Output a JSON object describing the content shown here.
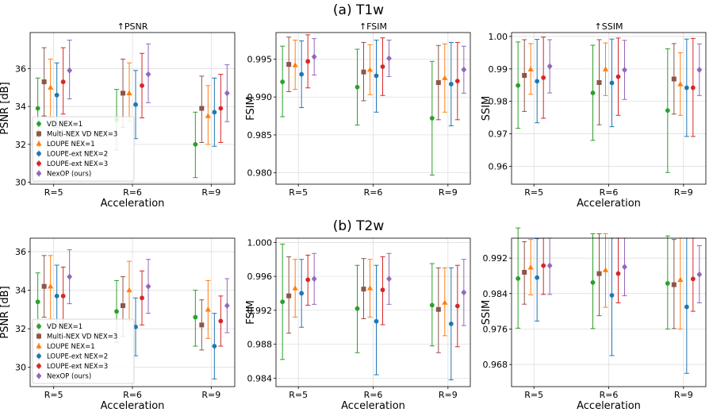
{
  "figure": {
    "row_titles": [
      "(a) T1w",
      "(b) T2w"
    ]
  },
  "legend_entries": [
    "VD NEX=1",
    "Multi-NEX VD NEX=3",
    "LOUPE NEX=1",
    "LOUPE-ext NEX=2",
    "LOUPE-ext NEX=3",
    "NexOP (ours)"
  ],
  "colors": {
    "VD NEX=1": "#2ca02c",
    "Multi-NEX VD NEX=3": "#8c564b",
    "LOUPE NEX=1": "#ff7f0e",
    "LOUPE-ext NEX=2": "#1f77b4",
    "LOUPE-ext NEX=3": "#d62728",
    "NexOP (ours)": "#9467bd"
  },
  "markers": {
    "VD NEX=1": "circle",
    "Multi-NEX VD NEX=3": "square",
    "LOUPE NEX=1": "triangle",
    "LOUPE-ext NEX=2": "circle",
    "LOUPE-ext NEX=3": "circle",
    "NexOP (ours)": "diamond"
  },
  "chart_data": [
    {
      "type": "scatter",
      "panel": "T1w-PSNR",
      "title": "↑PSNR",
      "xlabel": "Acceleration",
      "ylabel": "PSNR [dB]",
      "categories": [
        "R=5",
        "R=6",
        "R=9"
      ],
      "ylim": [
        29.9,
        37.9
      ],
      "yticks": [
        30,
        32,
        34,
        36
      ],
      "tick_format": "0",
      "grid": true,
      "legend": "lower-left",
      "series": [
        {
          "name": "VD NEX=1",
          "values": [
            33.9,
            33.3,
            32.0
          ],
          "err_low": [
            32.4,
            31.7,
            30.25
          ],
          "err_high": [
            35.5,
            34.9,
            33.7
          ]
        },
        {
          "name": "Multi-NEX VD NEX=3",
          "values": [
            35.3,
            34.7,
            33.9
          ],
          "err_low": [
            33.5,
            32.9,
            32.1
          ],
          "err_high": [
            37.1,
            36.5,
            35.6
          ]
        },
        {
          "name": "LOUPE NEX=1",
          "values": [
            35.0,
            34.7,
            33.5
          ],
          "err_low": [
            33.4,
            33.2,
            32.0
          ],
          "err_high": [
            36.5,
            36.3,
            35.1
          ]
        },
        {
          "name": "LOUPE-ext NEX=2",
          "values": [
            34.6,
            34.1,
            33.7
          ],
          "err_low": [
            32.9,
            32.3,
            31.9
          ],
          "err_high": [
            36.3,
            35.9,
            35.5
          ]
        },
        {
          "name": "LOUPE-ext NEX=3",
          "values": [
            35.3,
            35.1,
            33.9
          ],
          "err_low": [
            33.6,
            33.4,
            32.1
          ],
          "err_high": [
            37.1,
            36.8,
            35.7
          ]
        },
        {
          "name": "NexOP (ours)",
          "values": [
            35.9,
            35.7,
            34.7
          ],
          "err_low": [
            34.4,
            34.2,
            33.2
          ],
          "err_high": [
            37.5,
            37.3,
            36.2
          ]
        }
      ]
    },
    {
      "type": "scatter",
      "panel": "T1w-FSIM",
      "title": "↑FSIM",
      "xlabel": "",
      "ylabel": "FSIM",
      "categories": [
        "R=5",
        "R=6",
        "R=9"
      ],
      "ylim": [
        0.9785,
        0.9985
      ],
      "yticks": [
        0.98,
        0.985,
        0.99,
        0.995
      ],
      "tick_format": "3",
      "grid": true,
      "series": [
        {
          "name": "VD NEX=1",
          "values": [
            0.992,
            0.9913,
            0.9872
          ],
          "err_low": [
            0.9874,
            0.9863,
            0.9797
          ],
          "err_high": [
            0.9967,
            0.9963,
            0.9947
          ]
        },
        {
          "name": "Multi-NEX VD NEX=3",
          "values": [
            0.9943,
            0.9933,
            0.9919
          ],
          "err_low": [
            0.9907,
            0.9895,
            0.987
          ],
          "err_high": [
            0.9979,
            0.9972,
            0.9968
          ]
        },
        {
          "name": "LOUPE NEX=1",
          "values": [
            0.9942,
            0.9936,
            0.9925
          ],
          "err_low": [
            0.991,
            0.9903,
            0.988
          ],
          "err_high": [
            0.9975,
            0.9969,
            0.997
          ]
        },
        {
          "name": "LOUPE-ext NEX=2",
          "values": [
            0.993,
            0.9928,
            0.9917
          ],
          "err_low": [
            0.9886,
            0.988,
            0.9862
          ],
          "err_high": [
            0.9974,
            0.9975,
            0.9972
          ]
        },
        {
          "name": "LOUPE-ext NEX=3",
          "values": [
            0.9947,
            0.994,
            0.9921
          ],
          "err_low": [
            0.9912,
            0.9902,
            0.987
          ],
          "err_high": [
            0.9982,
            0.9978,
            0.9972
          ]
        },
        {
          "name": "NexOP (ours)",
          "values": [
            0.9953,
            0.9951,
            0.9936
          ],
          "err_low": [
            0.9929,
            0.9927,
            0.9905
          ],
          "err_high": [
            0.9977,
            0.9975,
            0.9967
          ]
        }
      ]
    },
    {
      "type": "scatter",
      "panel": "T1w-SSIM",
      "title": "↑SSIM",
      "xlabel": "Acceleration",
      "ylabel": "SSIM",
      "categories": [
        "R=5",
        "R=6",
        "R=9"
      ],
      "ylim": [
        0.9545,
        1.0012
      ],
      "yticks": [
        0.96,
        0.97,
        0.98,
        0.99,
        1.0
      ],
      "tick_format": "2",
      "grid": true,
      "series": [
        {
          "name": "VD NEX=1",
          "values": [
            0.9849,
            0.9826,
            0.9772
          ],
          "err_low": [
            0.9717,
            0.968,
            0.9581
          ],
          "err_high": [
            0.9983,
            0.9973,
            0.9962
          ]
        },
        {
          "name": "Multi-NEX VD NEX=3",
          "values": [
            0.988,
            0.9858,
            0.9869
          ],
          "err_low": [
            0.9769,
            0.9728,
            0.9761
          ],
          "err_high": [
            0.999,
            0.999,
            0.9978
          ]
        },
        {
          "name": "LOUPE NEX=1",
          "values": [
            0.9899,
            0.9899,
            0.9853
          ],
          "err_low": [
            0.9822,
            0.9818,
            0.9757
          ],
          "err_high": [
            0.9978,
            0.998,
            0.995
          ]
        },
        {
          "name": "LOUPE-ext NEX=2",
          "values": [
            0.9862,
            0.9857,
            0.9842
          ],
          "err_low": [
            0.9734,
            0.9722,
            0.9692
          ],
          "err_high": [
            0.9991,
            0.9992,
            0.9992
          ]
        },
        {
          "name": "LOUPE-ext NEX=3",
          "values": [
            0.9873,
            0.9876,
            0.9842
          ],
          "err_low": [
            0.9748,
            0.9757,
            0.9692
          ],
          "err_high": [
            0.9998,
            0.9995,
            0.9994
          ]
        },
        {
          "name": "NexOP (ours)",
          "values": [
            0.9908,
            0.9897,
            0.9897
          ],
          "err_low": [
            0.9826,
            0.9806,
            0.9818
          ],
          "err_high": [
            0.999,
            0.9988,
            0.9977
          ]
        }
      ]
    },
    {
      "type": "scatter",
      "panel": "T2w-PSNR",
      "title": "",
      "xlabel": "Acceleration",
      "ylabel": "PSNR [dB]",
      "categories": [
        "R=5",
        "R=6",
        "R=9"
      ],
      "ylim": [
        29.0,
        36.7
      ],
      "yticks": [
        30,
        32,
        34,
        36
      ],
      "tick_format": "0",
      "grid": true,
      "legend": "lower-left",
      "series": [
        {
          "name": "VD NEX=1",
          "values": [
            33.4,
            32.9,
            32.6
          ],
          "err_low": [
            31.8,
            31.3,
            31.1
          ],
          "err_high": [
            34.9,
            34.5,
            34.0
          ]
        },
        {
          "name": "Multi-NEX VD NEX=3",
          "values": [
            34.2,
            33.2,
            32.2
          ],
          "err_low": [
            32.6,
            31.6,
            30.9
          ],
          "err_high": [
            35.8,
            34.7,
            33.5
          ]
        },
        {
          "name": "LOUPE NEX=1",
          "values": [
            34.2,
            34.0,
            33.0
          ],
          "err_low": [
            32.5,
            32.4,
            31.5
          ],
          "err_high": [
            35.8,
            35.5,
            34.5
          ]
        },
        {
          "name": "LOUPE-ext NEX=2",
          "values": [
            33.7,
            32.1,
            31.1
          ],
          "err_low": [
            32.1,
            30.6,
            29.4
          ],
          "err_high": [
            35.3,
            33.6,
            32.8
          ]
        },
        {
          "name": "LOUPE-ext NEX=3",
          "values": [
            33.7,
            33.6,
            32.4
          ],
          "err_low": [
            32.2,
            32.2,
            31.1
          ],
          "err_high": [
            35.2,
            35.0,
            33.7
          ]
        },
        {
          "name": "NexOP (ours)",
          "values": [
            34.7,
            34.2,
            33.2
          ],
          "err_low": [
            33.3,
            32.8,
            31.8
          ],
          "err_high": [
            36.1,
            35.6,
            34.6
          ]
        }
      ]
    },
    {
      "type": "scatter",
      "panel": "T2w-FSIM",
      "title": "",
      "xlabel": "Acceleration",
      "ylabel": "FSIM",
      "categories": [
        "R=5",
        "R=6",
        "R=9"
      ],
      "ylim": [
        0.983,
        1.0005
      ],
      "yticks": [
        0.984,
        0.988,
        0.992,
        0.996,
        1.0
      ],
      "tick_format": "3",
      "grid": true,
      "series": [
        {
          "name": "VD NEX=1",
          "values": [
            0.993,
            0.9922,
            0.9926
          ],
          "err_low": [
            0.9862,
            0.987,
            0.9878
          ],
          "err_high": [
            0.9998,
            0.9973,
            0.9975
          ]
        },
        {
          "name": "Multi-NEX VD NEX=3",
          "values": [
            0.9937,
            0.9945,
            0.9921
          ],
          "err_low": [
            0.9893,
            0.991,
            0.987
          ],
          "err_high": [
            0.9983,
            0.9981,
            0.997
          ]
        },
        {
          "name": "LOUPE NEX=1",
          "values": [
            0.9946,
            0.9946,
            0.9929
          ],
          "err_low": [
            0.9912,
            0.9912,
            0.989
          ],
          "err_high": [
            0.998,
            0.998,
            0.997
          ]
        },
        {
          "name": "LOUPE-ext NEX=2",
          "values": [
            0.994,
            0.9907,
            0.9904
          ],
          "err_low": [
            0.99,
            0.9844,
            0.9838
          ],
          "err_high": [
            0.998,
            0.9973,
            0.997
          ]
        },
        {
          "name": "LOUPE-ext NEX=3",
          "values": [
            0.9956,
            0.9944,
            0.9925
          ],
          "err_low": [
            0.9926,
            0.9903,
            0.9877
          ],
          "err_high": [
            0.9985,
            0.9983,
            0.9973
          ]
        },
        {
          "name": "NexOP (ours)",
          "values": [
            0.9957,
            0.9957,
            0.9941
          ],
          "err_low": [
            0.9927,
            0.9927,
            0.9902
          ],
          "err_high": [
            0.9987,
            0.9987,
            0.998
          ]
        }
      ]
    },
    {
      "type": "scatter",
      "panel": "T2w-SSIM",
      "title": "",
      "xlabel": "Acceleration",
      "ylabel": "SSIM",
      "categories": [
        "R=5",
        "R=6",
        "R=9"
      ],
      "ylim": [
        0.963,
        0.9965
      ],
      "yticks": [
        0.968,
        0.976,
        0.984,
        0.992
      ],
      "tick_format": "3",
      "grid": true,
      "series": [
        {
          "name": "VD NEX=1",
          "values": [
            0.9874,
            0.9865,
            0.9863
          ],
          "err_low": [
            0.9762,
            0.9761,
            0.976
          ],
          "err_high": [
            0.9988,
            0.9975,
            0.997
          ]
        },
        {
          "name": "Multi-NEX VD NEX=3",
          "values": [
            0.9888,
            0.9885,
            0.986
          ],
          "err_low": [
            0.9816,
            0.979,
            0.9761
          ],
          "err_high": [
            0.9957,
            0.9975,
            0.9962
          ]
        },
        {
          "name": "LOUPE NEX=1",
          "values": [
            0.9899,
            0.9893,
            0.9871
          ],
          "err_low": [
            0.9837,
            0.9809,
            0.976
          ],
          "err_high": [
            0.9962,
            0.9975,
            0.9965
          ]
        },
        {
          "name": "LOUPE-ext NEX=2",
          "values": [
            0.9876,
            0.9836,
            0.981
          ],
          "err_low": [
            0.9778,
            0.97,
            0.966
          ],
          "err_high": [
            0.9964,
            0.9965,
            0.9965
          ]
        },
        {
          "name": "LOUPE-ext NEX=3",
          "values": [
            0.9903,
            0.9885,
            0.9873
          ],
          "err_low": [
            0.9838,
            0.9819,
            0.98
          ],
          "err_high": [
            0.9965,
            0.9965,
            0.9965
          ]
        },
        {
          "name": "NexOP (ours)",
          "values": [
            0.9903,
            0.99,
            0.9883
          ],
          "err_low": [
            0.9838,
            0.9835,
            0.9819
          ],
          "err_high": [
            0.9965,
            0.9965,
            0.9948
          ]
        }
      ]
    }
  ]
}
